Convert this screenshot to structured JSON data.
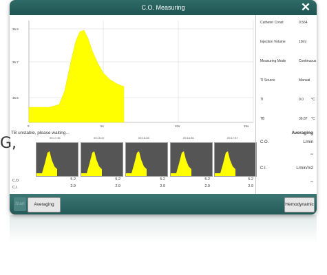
{
  "window": {
    "title": "C.O. Measuring",
    "close_icon": "close-icon"
  },
  "chart": {
    "y_ticks": [
      "36.9",
      "36.7",
      "36.5"
    ],
    "x_ticks": [
      "0",
      "5s",
      "10s",
      "15s"
    ],
    "curve_color": "#ffff00"
  },
  "params": {
    "catheter_const_label": "Catheter Const",
    "catheter_const_value": "0.564",
    "injection_volume_label": "Injection Volume",
    "injection_volume_value": "10ml",
    "measuring_mode_label": "Measuring Mode",
    "measuring_mode_value": "Continuous",
    "ti_source_label": "TI Source",
    "ti_source_value": "Manual",
    "ti_label": "TI",
    "ti_value": "0.0",
    "ti_unit": "°C",
    "tb_label": "TB",
    "tb_value": "36.87",
    "tb_unit": "°C"
  },
  "status_text": "TB unstable, please waiting...",
  "thumbs": [
    {
      "time": "09:17:36",
      "co": "5.2",
      "ci": "2.9"
    },
    {
      "time": "09:15:47",
      "co": "5.2",
      "ci": "2.9"
    },
    {
      "time": "09:16:28",
      "co": "5.2",
      "ci": "2.9"
    },
    {
      "time": "09:16:30",
      "co": "5.2",
      "ci": "2.9"
    },
    {
      "time": "09:17:37",
      "co": "5.2",
      "ci": "2.9"
    }
  ],
  "row_labels": {
    "co": "C.O.",
    "ci": "C.I."
  },
  "averaging": {
    "title": "Averaging",
    "co_label": "C.O.",
    "co_unit": "L/min",
    "co_value": "--",
    "ci_label": "C.I.",
    "ci_unit": "L/min/m2",
    "ci_value": "--"
  },
  "buttons": {
    "start": "Start",
    "averaging": "Averaging",
    "hemodynamic": "Hemodynamic"
  }
}
